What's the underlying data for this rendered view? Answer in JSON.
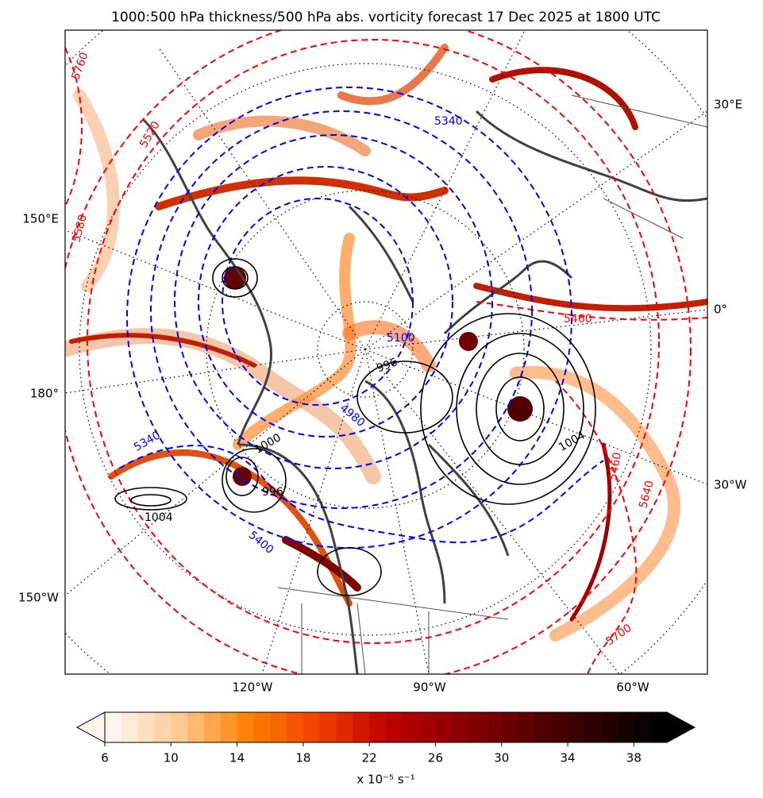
{
  "title": "1000:500 hPa thickness/500 hPa abs. vorticity forecast 17 Dec 2025 at 1800 UTC",
  "map": {
    "graticule_labels": [
      "30°E",
      "0°",
      "30°W",
      "150°E",
      "180°",
      "150°W",
      "120°W",
      "90°W",
      "60°W"
    ],
    "contour_labels": [
      "5760",
      "5520",
      "5580",
      "5340",
      "5100",
      "4980",
      "5340",
      "5400",
      "5460",
      "5460",
      "5640",
      "5700",
      "1004",
      "1004",
      "996",
      "1000",
      "996"
    ]
  },
  "colorbar": {
    "levels": [
      6,
      7,
      8,
      9,
      10,
      11,
      12,
      13,
      14,
      15,
      16,
      17,
      18,
      19,
      20,
      21,
      22,
      23,
      24,
      25,
      26,
      27,
      28,
      29,
      30,
      31,
      32,
      33,
      34,
      35,
      36,
      37,
      38,
      39,
      40
    ],
    "ticks": [
      6,
      10,
      14,
      18,
      22,
      26,
      30,
      34,
      38
    ],
    "extend": "both",
    "cmap": [
      "#fff5ee",
      "#ffc890",
      "#ff8000",
      "#f04000",
      "#c00000",
      "#900000",
      "#600000",
      "#300000",
      "#000000"
    ],
    "label": "x 10⁻⁵ s⁻¹"
  }
}
